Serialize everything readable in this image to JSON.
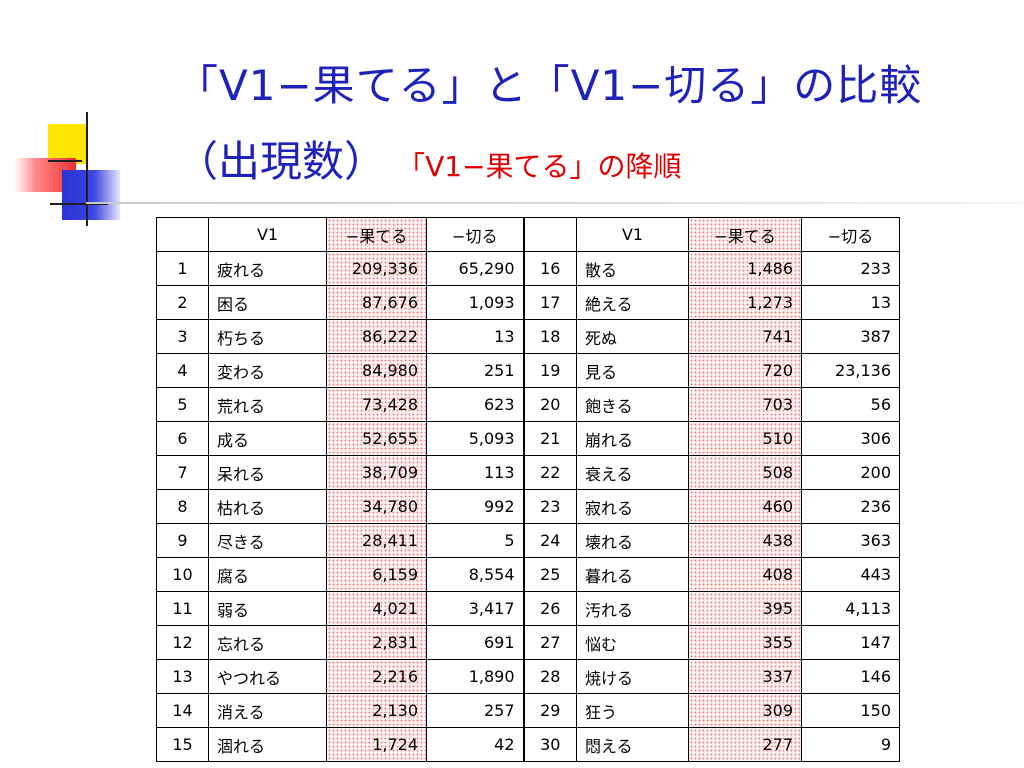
{
  "title": {
    "line1": "「V1−果てる」と「V1−切る」の比較",
    "line2_main": "（出現数）",
    "line2_sub": "「V1−果てる」の降順"
  },
  "table": {
    "headers": [
      "",
      "V1",
      "−果てる",
      "−切る",
      "",
      "V1",
      "−果てる",
      "−切る"
    ],
    "rows": [
      {
        "n1": "1",
        "w1": "疲れる",
        "a1": "209,336",
        "b1": "65,290",
        "n2": "16",
        "w2": "散る",
        "a2": "1,486",
        "b2": "233"
      },
      {
        "n1": "2",
        "w1": "困る",
        "a1": "87,676",
        "b1": "1,093",
        "n2": "17",
        "w2": "絶える",
        "a2": "1,273",
        "b2": "13"
      },
      {
        "n1": "3",
        "w1": "朽ちる",
        "a1": "86,222",
        "b1": "13",
        "n2": "18",
        "w2": "死ぬ",
        "a2": "741",
        "b2": "387"
      },
      {
        "n1": "4",
        "w1": "変わる",
        "a1": "84,980",
        "b1": "251",
        "n2": "19",
        "w2": "見る",
        "a2": "720",
        "b2": "23,136"
      },
      {
        "n1": "5",
        "w1": "荒れる",
        "a1": "73,428",
        "b1": "623",
        "n2": "20",
        "w2": "飽きる",
        "a2": "703",
        "b2": "56"
      },
      {
        "n1": "6",
        "w1": "成る",
        "a1": "52,655",
        "b1": "5,093",
        "n2": "21",
        "w2": "崩れる",
        "a2": "510",
        "b2": "306"
      },
      {
        "n1": "7",
        "w1": "呆れる",
        "a1": "38,709",
        "b1": "113",
        "n2": "22",
        "w2": "衰える",
        "a2": "508",
        "b2": "200"
      },
      {
        "n1": "8",
        "w1": "枯れる",
        "a1": "34,780",
        "b1": "992",
        "n2": "23",
        "w2": "寂れる",
        "a2": "460",
        "b2": "236"
      },
      {
        "n1": "9",
        "w1": "尽きる",
        "a1": "28,411",
        "b1": "5",
        "n2": "24",
        "w2": "壊れる",
        "a2": "438",
        "b2": "363"
      },
      {
        "n1": "10",
        "w1": "腐る",
        "a1": "6,159",
        "b1": "8,554",
        "n2": "25",
        "w2": "暮れる",
        "a2": "408",
        "b2": "443"
      },
      {
        "n1": "11",
        "w1": "弱る",
        "a1": "4,021",
        "b1": "3,417",
        "n2": "26",
        "w2": "汚れる",
        "a2": "395",
        "b2": "4,113"
      },
      {
        "n1": "12",
        "w1": "忘れる",
        "a1": "2,831",
        "b1": "691",
        "n2": "27",
        "w2": "悩む",
        "a2": "355",
        "b2": "147"
      },
      {
        "n1": "13",
        "w1": "やつれる",
        "a1": "2,216",
        "b1": "1,890",
        "n2": "28",
        "w2": "焼ける",
        "a2": "337",
        "b2": "146"
      },
      {
        "n1": "14",
        "w1": "消える",
        "a1": "2,130",
        "b1": "257",
        "n2": "29",
        "w2": "狂う",
        "a2": "309",
        "b2": "150"
      },
      {
        "n1": "15",
        "w1": "涸れる",
        "a1": "1,724",
        "b1": "42",
        "n2": "30",
        "w2": "悶える",
        "a2": "277",
        "b2": "9"
      }
    ]
  },
  "colors": {
    "title": "#1f22b8",
    "subtitle": "#e00000",
    "highlight_column": "#fde3e3"
  }
}
